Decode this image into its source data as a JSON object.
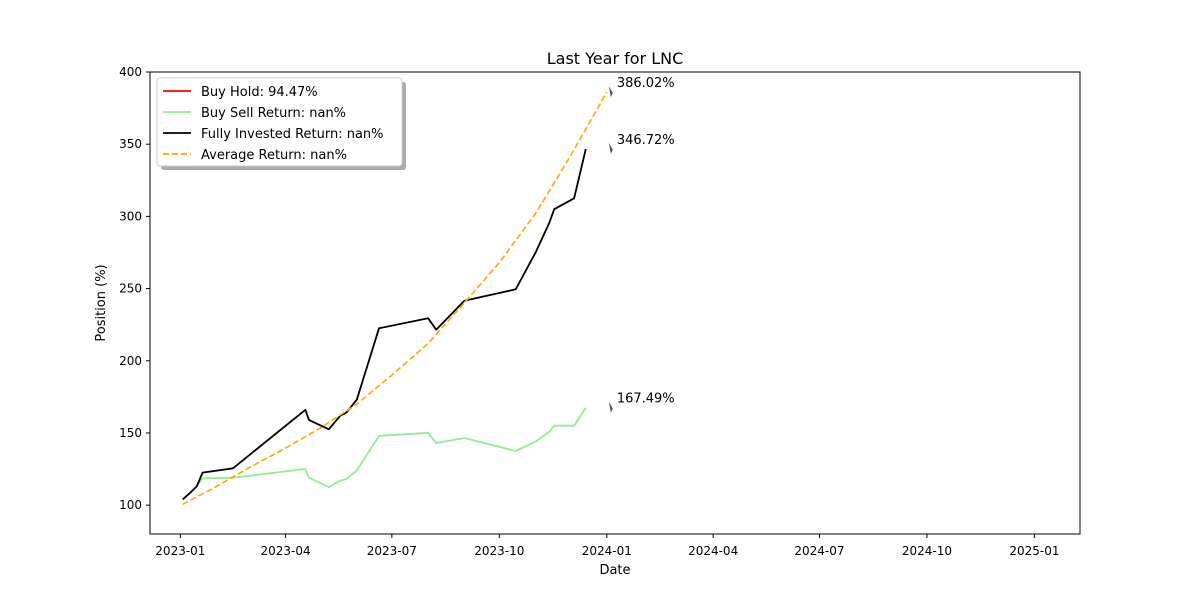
{
  "chart_data": {
    "type": "line",
    "title": "Last Year for LNC",
    "xlabel": "Date",
    "ylabel": "Position (%)",
    "xlim": [
      "2022-12-06",
      "2025-02-09"
    ],
    "ylim": [
      80,
      400
    ],
    "x_ticks": [
      "2023-01",
      "2023-04",
      "2023-07",
      "2023-10",
      "2024-01",
      "2024-04",
      "2024-07",
      "2024-10",
      "2025-01"
    ],
    "y_ticks": [
      100,
      150,
      200,
      250,
      300,
      350,
      400
    ],
    "legend_position": "top-left",
    "grid": false,
    "series": [
      {
        "name": "Buy Hold: 94.47%",
        "color": "#ff0000",
        "dash": "solid",
        "points": []
      },
      {
        "name": "Buy Sell Return: nan%",
        "color": "#90ee90",
        "dash": "solid",
        "points": [
          [
            "2023-01-03",
            104
          ],
          [
            "2023-01-10",
            109
          ],
          [
            "2023-01-15",
            113
          ],
          [
            "2023-01-20",
            118.5
          ],
          [
            "2023-02-15",
            119
          ],
          [
            "2023-04-18",
            125
          ],
          [
            "2023-04-21",
            119
          ],
          [
            "2023-05-08",
            112.5
          ],
          [
            "2023-05-18",
            117
          ],
          [
            "2023-05-23",
            118
          ],
          [
            "2023-06-01",
            124
          ],
          [
            "2023-06-20",
            148
          ],
          [
            "2023-08-01",
            150
          ],
          [
            "2023-08-08",
            143
          ],
          [
            "2023-09-01",
            146.5
          ],
          [
            "2023-10-15",
            137.5
          ],
          [
            "2023-11-01",
            144
          ],
          [
            "2023-11-13",
            151
          ],
          [
            "2023-11-17",
            155
          ],
          [
            "2023-12-04",
            155
          ],
          [
            "2023-12-14",
            167.5
          ]
        ]
      },
      {
        "name": "Fully Invested Return: nan%",
        "color": "#000000",
        "dash": "solid",
        "points": [
          [
            "2023-01-03",
            104
          ],
          [
            "2023-01-10",
            109
          ],
          [
            "2023-01-15",
            113
          ],
          [
            "2023-01-20",
            122.5
          ],
          [
            "2023-02-15",
            125.5
          ],
          [
            "2023-04-18",
            166
          ],
          [
            "2023-04-21",
            159
          ],
          [
            "2023-05-08",
            152.5
          ],
          [
            "2023-05-18",
            162
          ],
          [
            "2023-05-23",
            164
          ],
          [
            "2023-06-01",
            173
          ],
          [
            "2023-06-20",
            222.5
          ],
          [
            "2023-08-01",
            229.5
          ],
          [
            "2023-08-08",
            221.5
          ],
          [
            "2023-09-01",
            241.5
          ],
          [
            "2023-10-15",
            249.5
          ],
          [
            "2023-11-01",
            275
          ],
          [
            "2023-11-13",
            296
          ],
          [
            "2023-11-17",
            305
          ],
          [
            "2023-12-04",
            312.5
          ],
          [
            "2023-12-14",
            346.7
          ]
        ]
      },
      {
        "name": "Average Return: nan%",
        "color": "#ffa500",
        "dash": "dashed",
        "points": [
          [
            "2023-01-03",
            100.5
          ],
          [
            "2023-02-01",
            113
          ],
          [
            "2023-03-01",
            126
          ],
          [
            "2023-04-01",
            139.5
          ],
          [
            "2023-05-01",
            153.5
          ],
          [
            "2023-06-01",
            170
          ],
          [
            "2023-07-01",
            190
          ],
          [
            "2023-08-01",
            212
          ],
          [
            "2023-09-01",
            240
          ],
          [
            "2023-10-01",
            268
          ],
          [
            "2023-11-01",
            302
          ],
          [
            "2023-12-01",
            342
          ],
          [
            "2024-01-01",
            386
          ]
        ]
      }
    ],
    "annotations": [
      {
        "label": "386.02%",
        "x": "2024-01-01",
        "y": 386.02
      },
      {
        "label": "346.72%",
        "x": "2024-01-01",
        "y": 346.72
      },
      {
        "label": "167.49%",
        "x": "2024-01-01",
        "y": 167.49
      }
    ]
  }
}
